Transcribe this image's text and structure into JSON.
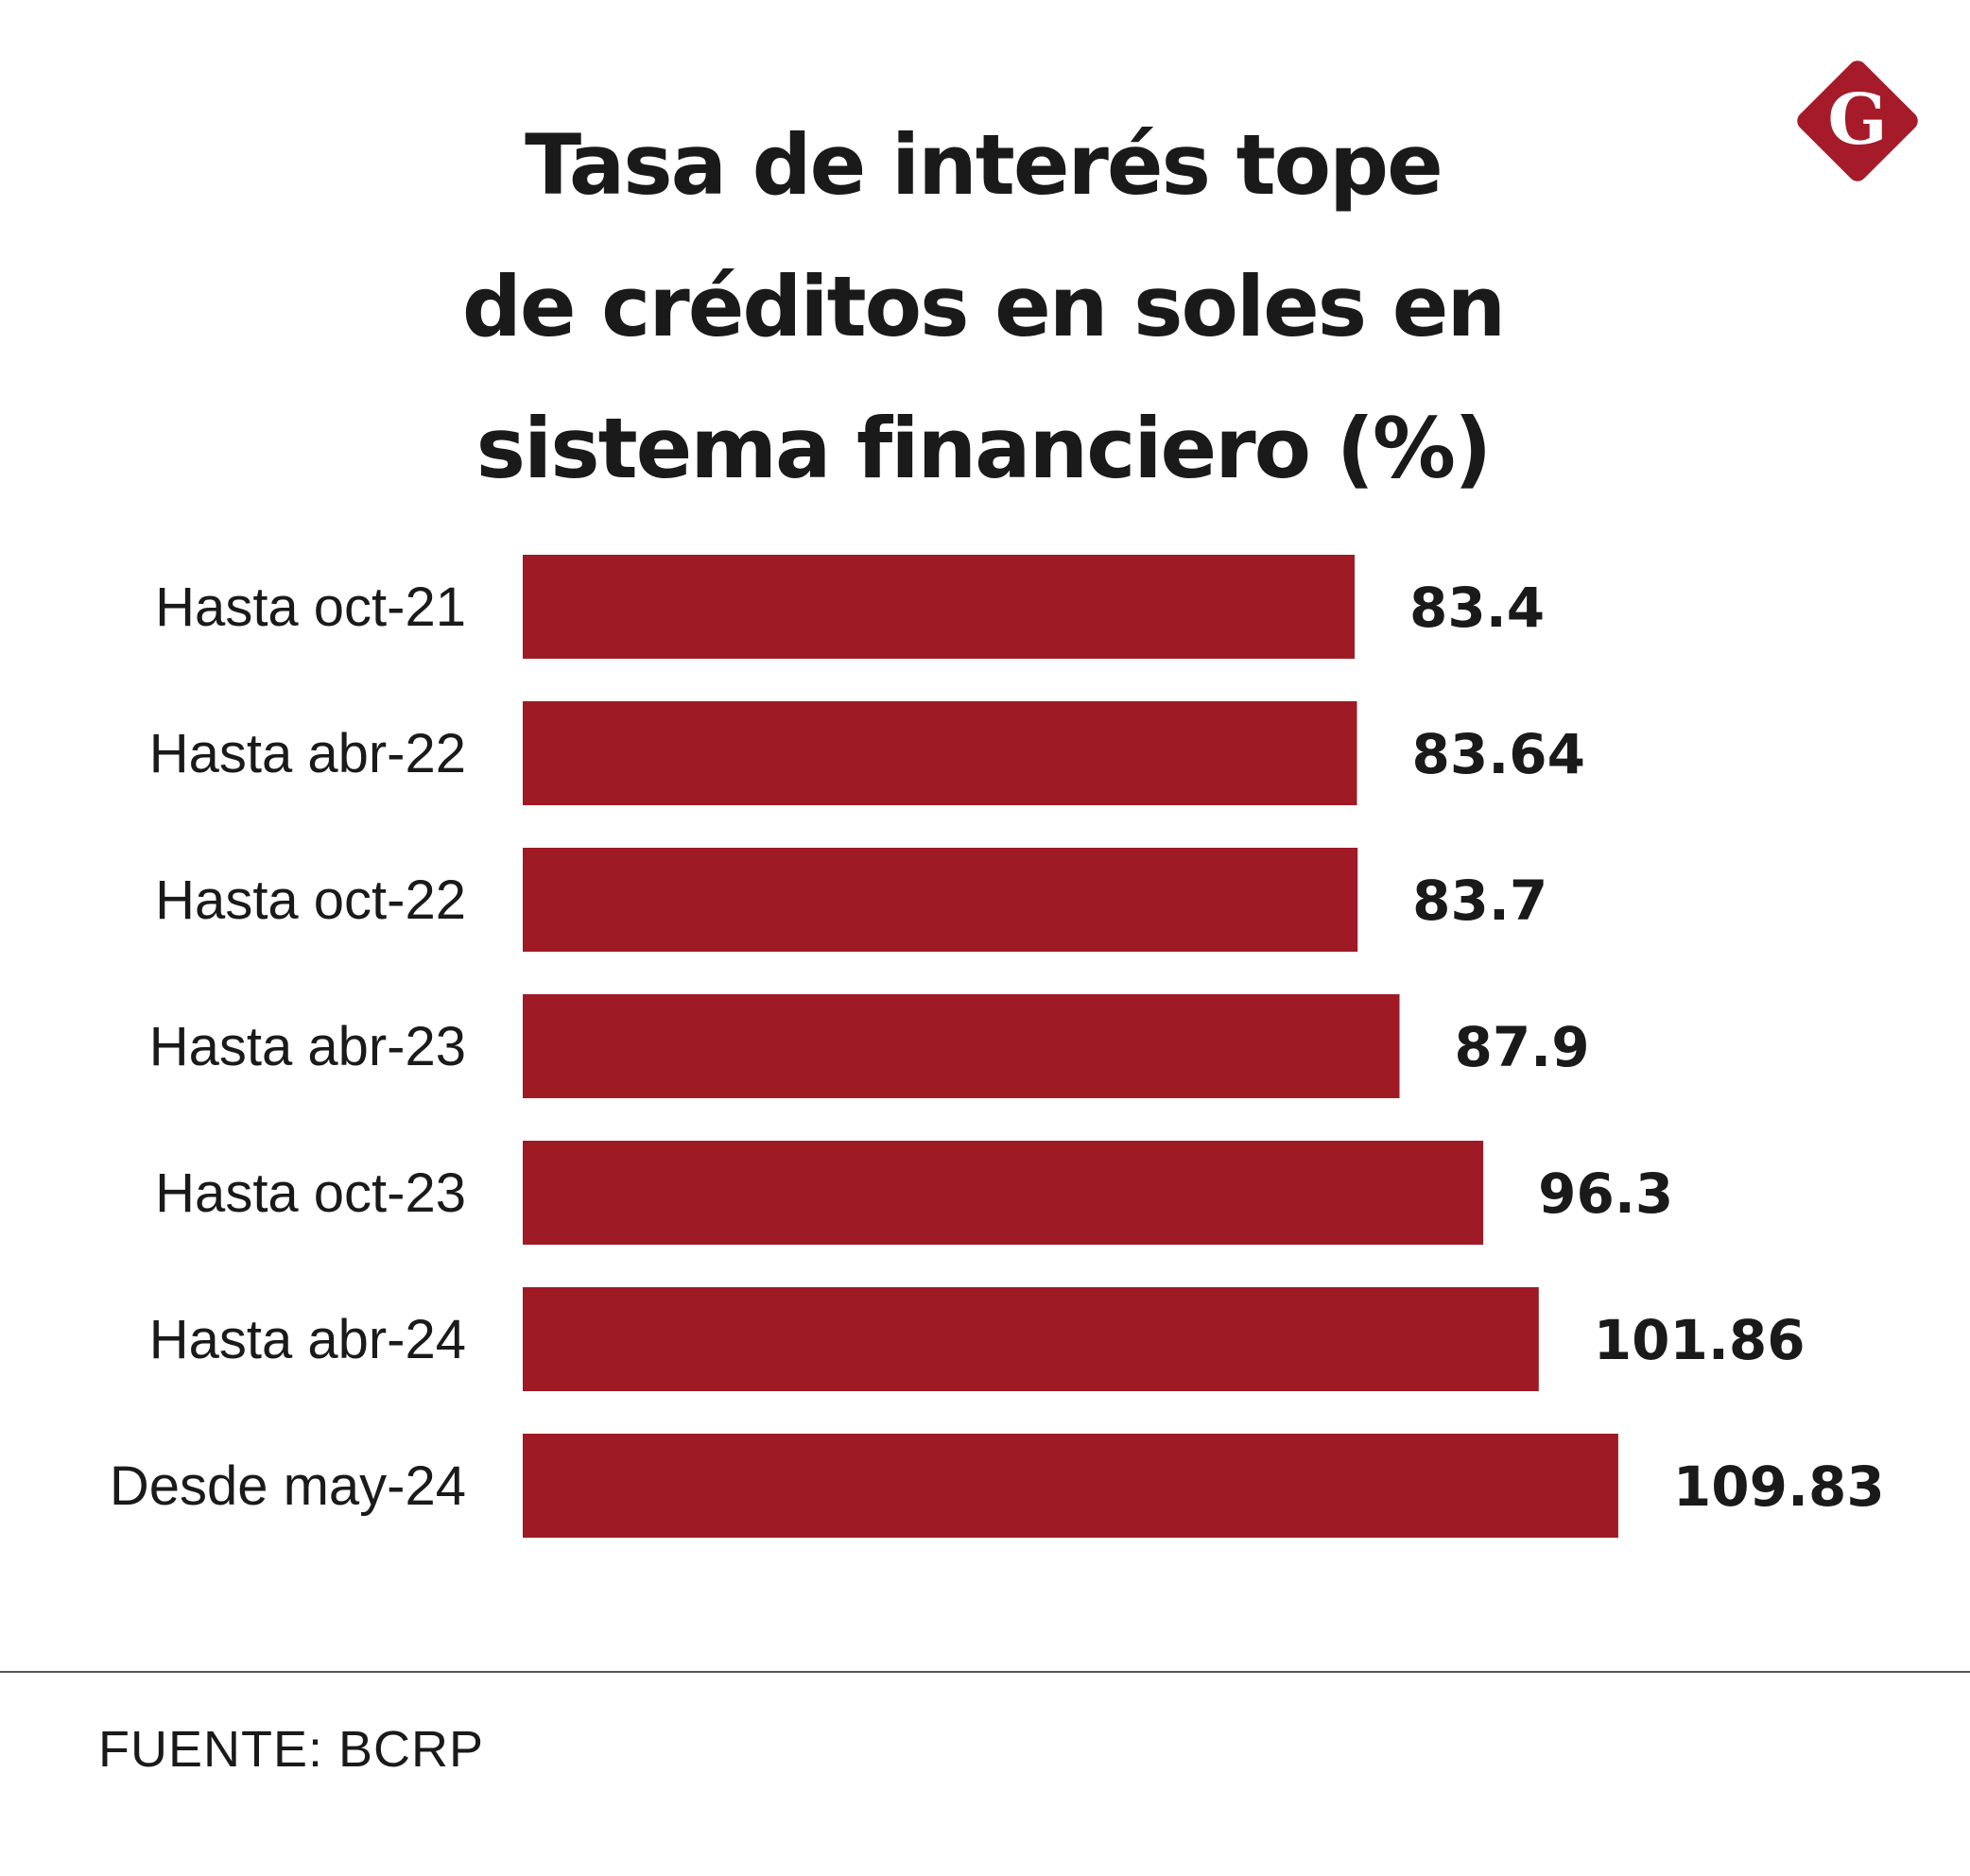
{
  "title_lines": [
    "Tasa de interés tope",
    "de créditos en soles en",
    "sistema financiero (%)"
  ],
  "logo": {
    "letter": "G",
    "color": "#a51b2a"
  },
  "colors": {
    "bar": "#9e1a24",
    "text": "#1a1a1a"
  },
  "source": "FUENTE: BCRP",
  "chart_data": {
    "type": "bar",
    "orientation": "horizontal",
    "title": "Tasa de interés tope de créditos en soles en sistema financiero (%)",
    "categories": [
      "Hasta oct-21",
      "Hasta abr-22",
      "Hasta oct-22",
      "Hasta abr-23",
      "Hasta oct-23",
      "Hasta abr-24",
      "Desde may-24"
    ],
    "values": [
      83.4,
      83.64,
      83.7,
      87.9,
      96.3,
      101.86,
      109.83
    ],
    "value_labels": [
      "83.4",
      "83.64",
      "83.7",
      "87.9",
      "96.3",
      "101.86",
      "109.83"
    ],
    "xlabel": "",
    "ylabel": "",
    "xlim": [
      0,
      110
    ],
    "grid": false,
    "legend": "none"
  }
}
